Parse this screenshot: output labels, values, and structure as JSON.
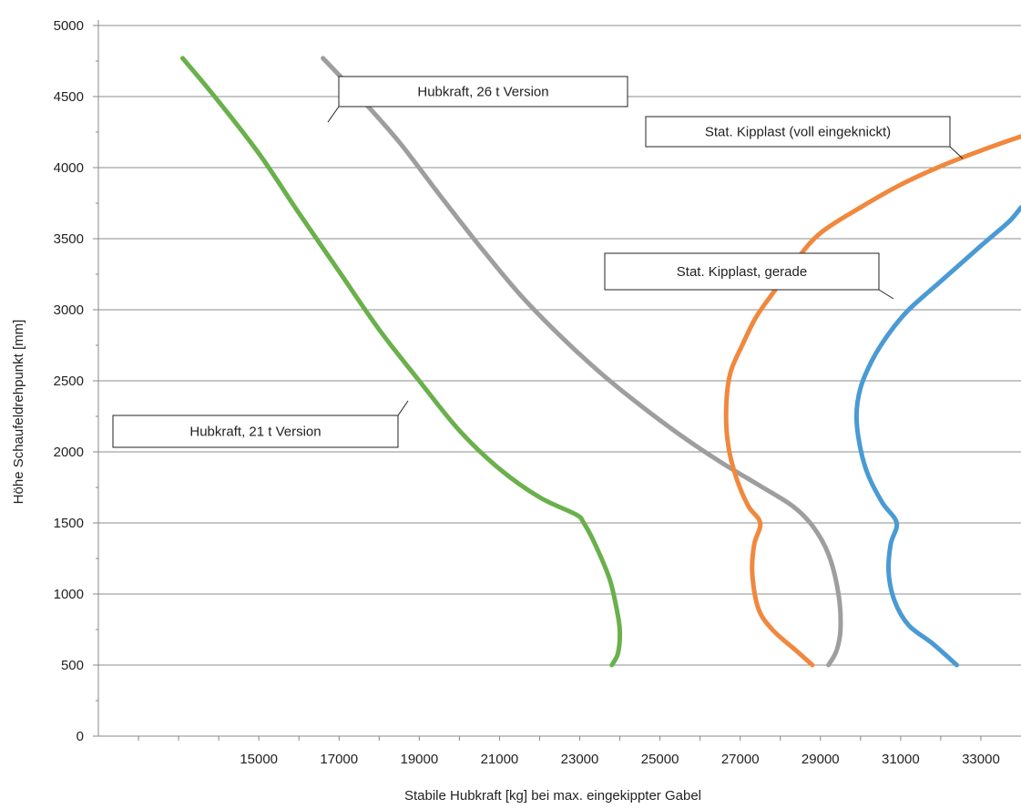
{
  "chart_data": {
    "type": "line",
    "xlabel": "Stabile Hubkraft [kg] bei max. eingekippter Gabel",
    "ylabel": "Höhe Schaufeldrehpunkt [mm]",
    "xlim": [
      11000,
      34000
    ],
    "ylim": [
      0,
      5000
    ],
    "x_ticks": [
      "15000",
      "17000",
      "19000",
      "21000",
      "23000",
      "25000",
      "27000",
      "29000",
      "31000",
      "33000"
    ],
    "y_ticks": [
      "0",
      "500",
      "1000",
      "1500",
      "2000",
      "2500",
      "3000",
      "3500",
      "4000",
      "4500",
      "5000"
    ],
    "grid": "horizontal",
    "series": [
      {
        "name": "Hubkraft, 21 t Version",
        "color": "#6ab04c",
        "points": [
          [
            13100,
            4770
          ],
          [
            13900,
            4500
          ],
          [
            15000,
            4100
          ],
          [
            16000,
            3680
          ],
          [
            17000,
            3270
          ],
          [
            18000,
            2860
          ],
          [
            19000,
            2500
          ],
          [
            20000,
            2150
          ],
          [
            21000,
            1880
          ],
          [
            22000,
            1680
          ],
          [
            22900,
            1560
          ],
          [
            23100,
            1500
          ],
          [
            23400,
            1340
          ],
          [
            23750,
            1100
          ],
          [
            23950,
            850
          ],
          [
            24000,
            720
          ],
          [
            23950,
            580
          ],
          [
            23800,
            500
          ]
        ]
      },
      {
        "name": "Hubkraft, 26 t Version",
        "color": "#9e9e9e",
        "points": [
          [
            16600,
            4770
          ],
          [
            17500,
            4500
          ],
          [
            18500,
            4180
          ],
          [
            19500,
            3810
          ],
          [
            20500,
            3450
          ],
          [
            21500,
            3110
          ],
          [
            22500,
            2820
          ],
          [
            23500,
            2560
          ],
          [
            24500,
            2330
          ],
          [
            25500,
            2120
          ],
          [
            26500,
            1930
          ],
          [
            27500,
            1760
          ],
          [
            28300,
            1620
          ],
          [
            28800,
            1480
          ],
          [
            29200,
            1280
          ],
          [
            29450,
            1000
          ],
          [
            29500,
            750
          ],
          [
            29400,
            600
          ],
          [
            29200,
            500
          ]
        ]
      },
      {
        "name": "Stat. Kipplast (voll eingeknickt)",
        "color": "#f0883e",
        "points": [
          [
            34000,
            4220
          ],
          [
            33000,
            4120
          ],
          [
            32000,
            4010
          ],
          [
            31000,
            3880
          ],
          [
            30000,
            3720
          ],
          [
            29000,
            3540
          ],
          [
            28400,
            3350
          ],
          [
            27900,
            3150
          ],
          [
            27400,
            2950
          ],
          [
            27050,
            2750
          ],
          [
            26750,
            2550
          ],
          [
            26650,
            2300
          ],
          [
            26700,
            2050
          ],
          [
            26900,
            1820
          ],
          [
            27200,
            1620
          ],
          [
            27500,
            1500
          ],
          [
            27350,
            1350
          ],
          [
            27300,
            1150
          ],
          [
            27450,
            900
          ],
          [
            27800,
            750
          ],
          [
            28400,
            600
          ],
          [
            28800,
            500
          ]
        ]
      },
      {
        "name": "Stat. Kipplast, gerade",
        "color": "#4a9ad4",
        "points": [
          [
            34000,
            3720
          ],
          [
            33700,
            3620
          ],
          [
            33000,
            3450
          ],
          [
            32000,
            3200
          ],
          [
            31200,
            3000
          ],
          [
            30700,
            2830
          ],
          [
            30300,
            2650
          ],
          [
            30000,
            2450
          ],
          [
            29900,
            2250
          ],
          [
            30000,
            2020
          ],
          [
            30200,
            1830
          ],
          [
            30550,
            1640
          ],
          [
            30900,
            1500
          ],
          [
            30750,
            1350
          ],
          [
            30700,
            1150
          ],
          [
            30850,
            950
          ],
          [
            31200,
            780
          ],
          [
            31800,
            650
          ],
          [
            32400,
            500
          ]
        ]
      }
    ],
    "annotations": [
      {
        "text": "Hubkraft, 26 t Version",
        "series": 1
      },
      {
        "text": "Stat. Kipplast (voll eingeknickt)",
        "series": 2
      },
      {
        "text": "Stat. Kipplast, gerade",
        "series": 3
      },
      {
        "text": "Hubkraft, 21 t Version",
        "series": 0
      }
    ]
  }
}
